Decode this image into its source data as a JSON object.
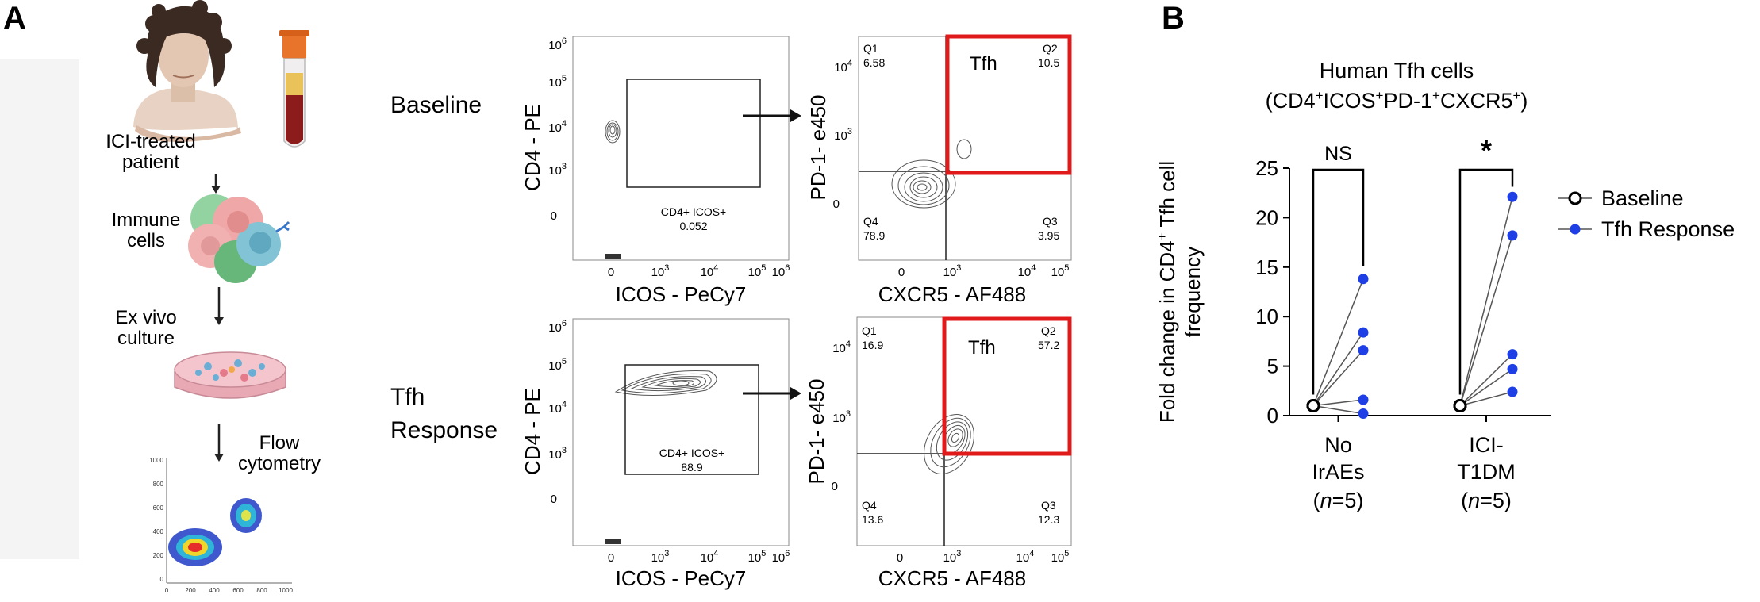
{
  "panel_a": {
    "letter": "A",
    "workflow": {
      "patient_label_1": "ICI-treated",
      "patient_label_2": "patient",
      "immune_label_1": "Immune",
      "immune_label_2": "cells",
      "culture_label_1": "Ex vivo",
      "culture_label_2": "culture",
      "flow_label_1": "Flow",
      "flow_label_2": "cytometry",
      "mini_plot_ticks_y": [
        "1000",
        "800",
        "600",
        "400",
        "200",
        "0"
      ],
      "mini_plot_ticks_x": [
        "0",
        "200",
        "400",
        "600",
        "800",
        "1000"
      ]
    },
    "rows": [
      {
        "label_lines": [
          "Baseline"
        ],
        "gate_plot": {
          "xlabel": "ICOS - PeCy7",
          "ylabel": "CD4 - PE",
          "gate_name": "CD4+ ICOS+",
          "gate_value": "0.052"
        },
        "quad_plot": {
          "xlabel": "CXCR5 - AF488",
          "ylabel": "PD-1- e450",
          "q1_name": "Q1",
          "q1_value": "6.58",
          "q2_name": "Q2",
          "q2_value": "10.5",
          "q3_name": "Q3",
          "q3_value": "3.95",
          "q4_name": "Q4",
          "q4_value": "78.9",
          "box_label": "Tfh"
        }
      },
      {
        "label_lines": [
          "Tfh",
          "Response"
        ],
        "gate_plot": {
          "xlabel": "ICOS - PeCy7",
          "ylabel": "CD4 - PE",
          "gate_name": "CD4+ ICOS+",
          "gate_value": "88.9"
        },
        "quad_plot": {
          "xlabel": "CXCR5 - AF488",
          "ylabel": "PD-1- e450",
          "q1_name": "Q1",
          "q1_value": "16.9",
          "q2_name": "Q2",
          "q2_value": "57.2",
          "q3_name": "Q3",
          "q3_value": "12.3",
          "q4_name": "Q4",
          "q4_value": "13.6",
          "box_label": "Tfh"
        }
      }
    ]
  },
  "panel_b": {
    "letter": "B",
    "title_line1": "Human Tfh cells",
    "ylabel_part1": "Fold change in CD4",
    "ylabel_sup": "+",
    "ylabel_part2": " Tfh cell",
    "ylabel_line2": "frequency",
    "significance": [
      "NS",
      "*"
    ],
    "colors": {
      "baseline": "#000000",
      "response": "#1f3fe6"
    }
  },
  "chart_data": {
    "type": "scatter",
    "title": "Human Tfh cells (CD4+ICOS+PD-1+CXCR5+)",
    "xlabel": "",
    "ylabel": "Fold change in CD4+ Tfh cell frequency",
    "ylim": [
      0,
      25
    ],
    "yticks": [
      "0",
      "5",
      "10",
      "15",
      "20",
      "25"
    ],
    "categories": [
      {
        "line1": "No",
        "line2": "IrAEs",
        "n_text": "n",
        "n_rest": "=5"
      },
      {
        "line1": "ICI-",
        "line2": "T1DM",
        "n_text": "n",
        "n_rest": "=5"
      }
    ],
    "series": [
      {
        "name": "Baseline",
        "marker": "open-circle",
        "values": [
          [
            1,
            1,
            1,
            1,
            1
          ],
          [
            1,
            1,
            1,
            1,
            1
          ]
        ]
      },
      {
        "name": "Tfh Response",
        "marker": "filled-circle",
        "values": [
          [
            13.8,
            8.4,
            6.6,
            1.6,
            0.2
          ],
          [
            22.1,
            18.2,
            6.2,
            4.7,
            2.4
          ]
        ]
      }
    ],
    "legend_placement": "right"
  }
}
